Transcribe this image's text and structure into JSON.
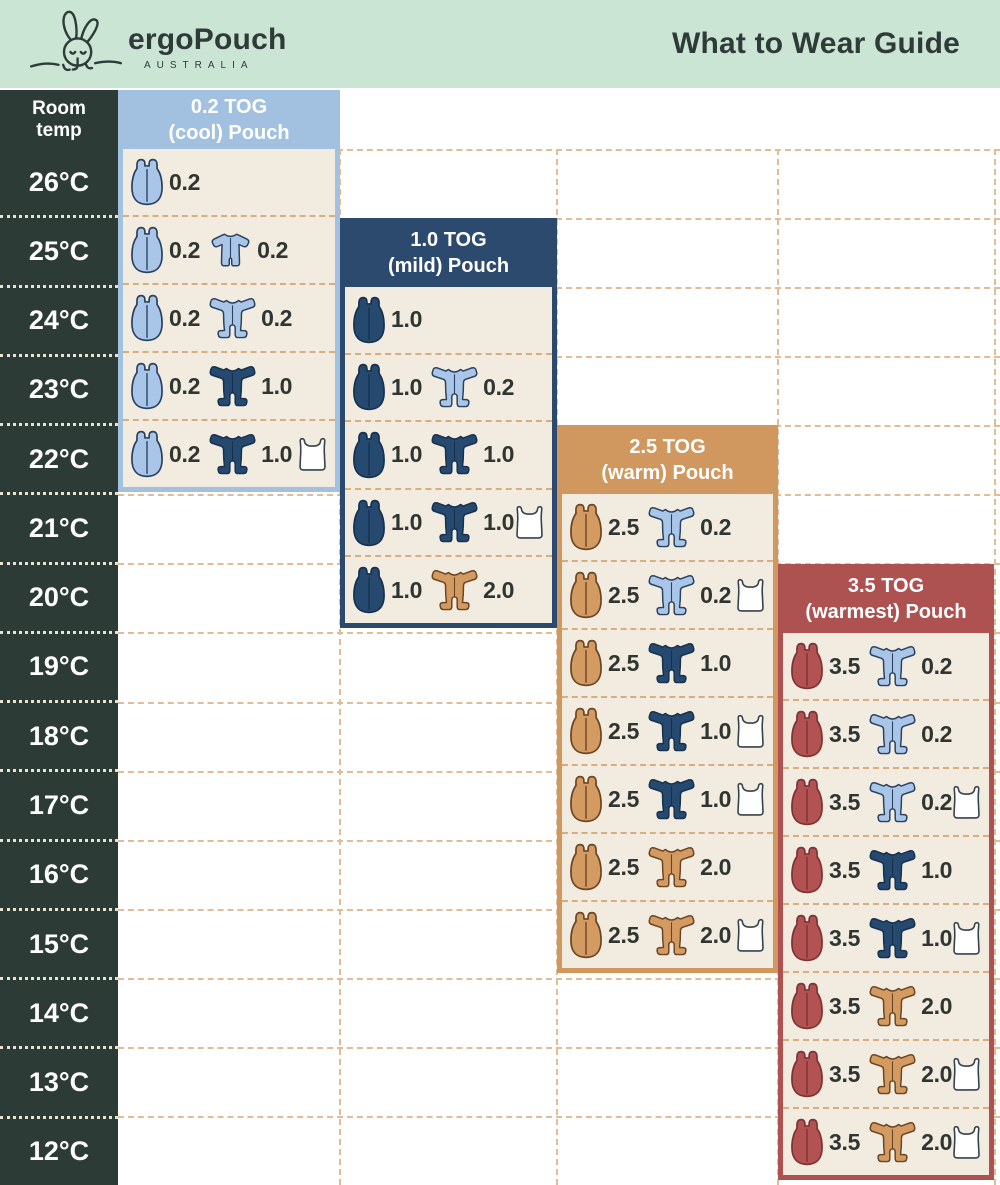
{
  "header": {
    "brand": "ergoPouch",
    "brand_sub": "AUSTRALIA",
    "title": "What to Wear Guide"
  },
  "temp_column": {
    "header": "Room temp",
    "temps": [
      "26°C",
      "25°C",
      "24°C",
      "23°C",
      "22°C",
      "21°C",
      "20°C",
      "19°C",
      "18°C",
      "17°C",
      "16°C",
      "15°C",
      "14°C",
      "13°C",
      "12°C"
    ]
  },
  "palette": {
    "header_bg": "#cbe5d5",
    "ink": "#2e3b38",
    "column_bg": "#2d3b37",
    "cream": "#f2ebe0",
    "grid_dash": "#e0bd96",
    "column_dot": "#ebe2cf",
    "tog_text": "#2f3530"
  },
  "icon_colors": {
    "lightblue": {
      "fill": "#a9c6e8",
      "stroke": "#2a4260"
    },
    "navy": {
      "fill": "#26496f",
      "stroke": "#16304d"
    },
    "tan": {
      "fill": "#d39b62",
      "stroke": "#6b4522"
    },
    "red": {
      "fill": "#b25252",
      "stroke": "#7c3333"
    },
    "white": {
      "fill": "#ffffff",
      "stroke": "#36424c"
    }
  },
  "panels": [
    {
      "tog": "0.2",
      "title_line1": "0.2 TOG",
      "title_line2": "(cool) Pouch",
      "color": "#a2c1e1",
      "rows": [
        {
          "temp": "26°C",
          "items": [
            {
              "type": "pouch",
              "color": "lightblue",
              "tog": "0.2"
            }
          ]
        },
        {
          "temp": "25°C",
          "items": [
            {
              "type": "pouch",
              "color": "lightblue",
              "tog": "0.2"
            },
            {
              "type": "romper",
              "color": "lightblue",
              "tog": "0.2"
            }
          ]
        },
        {
          "temp": "24°C",
          "items": [
            {
              "type": "pouch",
              "color": "lightblue",
              "tog": "0.2"
            },
            {
              "type": "onesie",
              "color": "lightblue",
              "tog": "0.2"
            }
          ]
        },
        {
          "temp": "23°C",
          "items": [
            {
              "type": "pouch",
              "color": "lightblue",
              "tog": "0.2"
            },
            {
              "type": "onesie",
              "color": "navy",
              "tog": "1.0"
            }
          ]
        },
        {
          "temp": "22°C",
          "items": [
            {
              "type": "pouch",
              "color": "lightblue",
              "tog": "0.2"
            },
            {
              "type": "onesie",
              "color": "navy",
              "tog": "1.0"
            },
            {
              "type": "singlet",
              "color": "white"
            }
          ]
        }
      ]
    },
    {
      "tog": "1.0",
      "title_line1": "1.0 TOG",
      "title_line2": "(mild) Pouch",
      "color": "#2c4a6e",
      "rows": [
        {
          "temp": "24°C",
          "items": [
            {
              "type": "pouch",
              "color": "navy",
              "tog": "1.0"
            }
          ]
        },
        {
          "temp": "23°C",
          "items": [
            {
              "type": "pouch",
              "color": "navy",
              "tog": "1.0"
            },
            {
              "type": "onesie",
              "color": "lightblue",
              "tog": "0.2"
            }
          ]
        },
        {
          "temp": "22°C",
          "items": [
            {
              "type": "pouch",
              "color": "navy",
              "tog": "1.0"
            },
            {
              "type": "onesie",
              "color": "navy",
              "tog": "1.0"
            }
          ]
        },
        {
          "temp": "21°C",
          "items": [
            {
              "type": "pouch",
              "color": "navy",
              "tog": "1.0"
            },
            {
              "type": "onesie",
              "color": "navy",
              "tog": "1.0"
            },
            {
              "type": "singlet",
              "color": "white"
            }
          ]
        },
        {
          "temp": "20°C",
          "items": [
            {
              "type": "pouch",
              "color": "navy",
              "tog": "1.0"
            },
            {
              "type": "onesie",
              "color": "tan",
              "tog": "2.0"
            }
          ]
        }
      ]
    },
    {
      "tog": "2.5",
      "title_line1": "2.5 TOG",
      "title_line2": "(warm) Pouch",
      "color": "#d0985e",
      "rows": [
        {
          "temp": "21°C",
          "items": [
            {
              "type": "pouch",
              "color": "tan",
              "tog": "2.5"
            },
            {
              "type": "onesie",
              "color": "lightblue",
              "tog": "0.2"
            }
          ]
        },
        {
          "temp": "20°C",
          "items": [
            {
              "type": "pouch",
              "color": "tan",
              "tog": "2.5"
            },
            {
              "type": "onesie",
              "color": "lightblue",
              "tog": "0.2"
            },
            {
              "type": "singlet",
              "color": "white"
            }
          ]
        },
        {
          "temp": "19°C",
          "items": [
            {
              "type": "pouch",
              "color": "tan",
              "tog": "2.5"
            },
            {
              "type": "onesie",
              "color": "navy",
              "tog": "1.0"
            }
          ]
        },
        {
          "temp": "18°C",
          "items": [
            {
              "type": "pouch",
              "color": "tan",
              "tog": "2.5"
            },
            {
              "type": "onesie",
              "color": "navy",
              "tog": "1.0"
            },
            {
              "type": "singlet",
              "color": "white"
            }
          ]
        },
        {
          "temp": "17°C",
          "items": [
            {
              "type": "pouch",
              "color": "tan",
              "tog": "2.5"
            },
            {
              "type": "onesie",
              "color": "navy",
              "tog": "1.0"
            },
            {
              "type": "singlet",
              "color": "white"
            }
          ]
        },
        {
          "temp": "16°C",
          "items": [
            {
              "type": "pouch",
              "color": "tan",
              "tog": "2.5"
            },
            {
              "type": "onesie",
              "color": "tan",
              "tog": "2.0"
            }
          ]
        },
        {
          "temp": "15°C",
          "items": [
            {
              "type": "pouch",
              "color": "tan",
              "tog": "2.5"
            },
            {
              "type": "onesie",
              "color": "tan",
              "tog": "2.0"
            },
            {
              "type": "singlet",
              "color": "white"
            }
          ]
        }
      ]
    },
    {
      "tog": "3.5",
      "title_line1": "3.5 TOG",
      "title_line2": "(warmest) Pouch",
      "color": "#ae5151",
      "rows": [
        {
          "temp": "19°C",
          "items": [
            {
              "type": "pouch",
              "color": "red",
              "tog": "3.5"
            },
            {
              "type": "onesie",
              "color": "lightblue",
              "tog": "0.2"
            }
          ]
        },
        {
          "temp": "18°C",
          "items": [
            {
              "type": "pouch",
              "color": "red",
              "tog": "3.5"
            },
            {
              "type": "onesie",
              "color": "lightblue",
              "tog": "0.2"
            }
          ]
        },
        {
          "temp": "17°C",
          "items": [
            {
              "type": "pouch",
              "color": "red",
              "tog": "3.5"
            },
            {
              "type": "onesie",
              "color": "lightblue",
              "tog": "0.2"
            },
            {
              "type": "singlet",
              "color": "white"
            }
          ]
        },
        {
          "temp": "16°C",
          "items": [
            {
              "type": "pouch",
              "color": "red",
              "tog": "3.5"
            },
            {
              "type": "onesie",
              "color": "navy",
              "tog": "1.0"
            }
          ]
        },
        {
          "temp": "15°C",
          "items": [
            {
              "type": "pouch",
              "color": "red",
              "tog": "3.5"
            },
            {
              "type": "onesie",
              "color": "navy",
              "tog": "1.0"
            },
            {
              "type": "singlet",
              "color": "white"
            }
          ]
        },
        {
          "temp": "14°C",
          "items": [
            {
              "type": "pouch",
              "color": "red",
              "tog": "3.5"
            },
            {
              "type": "onesie",
              "color": "tan",
              "tog": "2.0"
            }
          ]
        },
        {
          "temp": "13°C",
          "items": [
            {
              "type": "pouch",
              "color": "red",
              "tog": "3.5"
            },
            {
              "type": "onesie",
              "color": "tan",
              "tog": "2.0"
            },
            {
              "type": "singlet",
              "color": "white"
            }
          ]
        },
        {
          "temp": "12°C",
          "items": [
            {
              "type": "pouch",
              "color": "red",
              "tog": "3.5"
            },
            {
              "type": "onesie",
              "color": "tan",
              "tog": "2.0"
            },
            {
              "type": "singlet",
              "color": "white"
            }
          ]
        }
      ]
    }
  ],
  "chart_data": {
    "type": "table",
    "title": "What to Wear Guide",
    "row_header": "Room temp",
    "columns": [
      "0.2 TOG (cool) Pouch",
      "1.0 TOG (mild) Pouch",
      "2.5 TOG (warm) Pouch",
      "3.5 TOG (warmest) Pouch"
    ],
    "rows": [
      {
        "temp": "26°C",
        "cells": [
          "pouch 0.2",
          null,
          null,
          null
        ]
      },
      {
        "temp": "25°C",
        "cells": [
          "pouch 0.2 + romper 0.2",
          null,
          null,
          null
        ]
      },
      {
        "temp": "24°C",
        "cells": [
          "pouch 0.2 + onesie 0.2",
          "pouch 1.0",
          null,
          null
        ]
      },
      {
        "temp": "23°C",
        "cells": [
          "pouch 0.2 + onesie 1.0",
          "pouch 1.0 + onesie 0.2",
          null,
          null
        ]
      },
      {
        "temp": "22°C",
        "cells": [
          "pouch 0.2 + onesie 1.0 + singlet",
          "pouch 1.0 + onesie 1.0",
          null,
          null
        ]
      },
      {
        "temp": "21°C",
        "cells": [
          null,
          "pouch 1.0 + onesie 1.0 + singlet",
          "pouch 2.5 + onesie 0.2",
          null
        ]
      },
      {
        "temp": "20°C",
        "cells": [
          null,
          "pouch 1.0 + onesie 2.0",
          "pouch 2.5 + onesie 0.2 + singlet",
          null
        ]
      },
      {
        "temp": "19°C",
        "cells": [
          null,
          null,
          "pouch 2.5 + onesie 1.0",
          "pouch 3.5 + onesie 0.2"
        ]
      },
      {
        "temp": "18°C",
        "cells": [
          null,
          null,
          "pouch 2.5 + onesie 1.0 + singlet",
          "pouch 3.5 + onesie 0.2"
        ]
      },
      {
        "temp": "17°C",
        "cells": [
          null,
          null,
          "pouch 2.5 + onesie 1.0 + singlet",
          "pouch 3.5 + onesie 0.2 + singlet"
        ]
      },
      {
        "temp": "16°C",
        "cells": [
          null,
          null,
          "pouch 2.5 + onesie 2.0",
          "pouch 3.5 + onesie 1.0"
        ]
      },
      {
        "temp": "15°C",
        "cells": [
          null,
          null,
          "pouch 2.5 + onesie 2.0 + singlet",
          "pouch 3.5 + onesie 1.0 + singlet"
        ]
      },
      {
        "temp": "14°C",
        "cells": [
          null,
          null,
          null,
          "pouch 3.5 + onesie 2.0"
        ]
      },
      {
        "temp": "13°C",
        "cells": [
          null,
          null,
          null,
          "pouch 3.5 + onesie 2.0 + singlet"
        ]
      },
      {
        "temp": "12°C",
        "cells": [
          null,
          null,
          null,
          "pouch 3.5 + onesie 2.0 + singlet"
        ]
      }
    ]
  }
}
